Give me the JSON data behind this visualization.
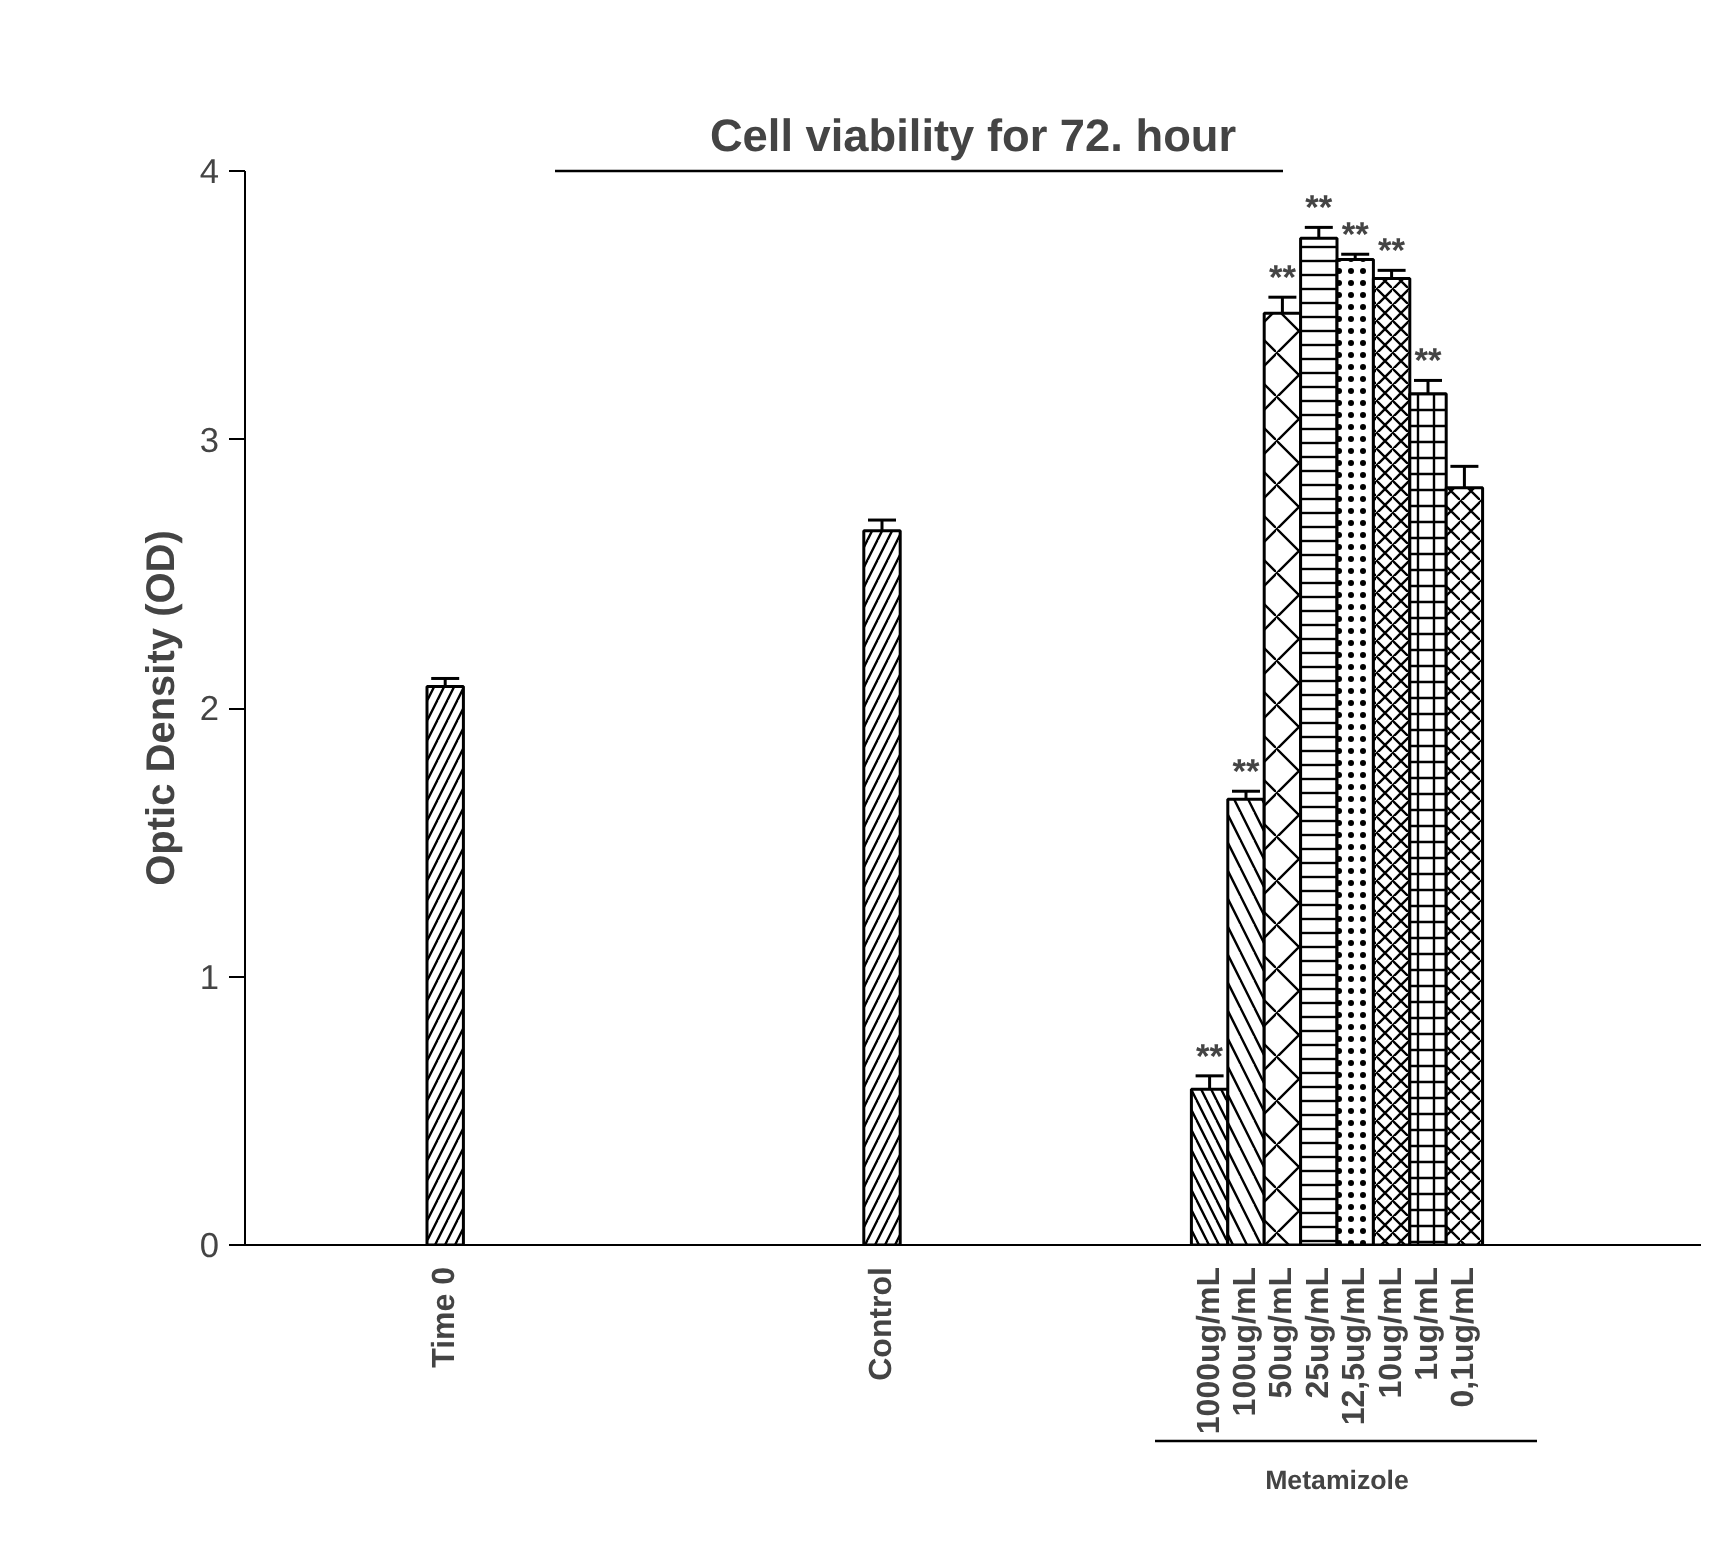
{
  "chart_data": {
    "type": "bar",
    "title": "Cell viability for 72. hour",
    "ylabel": "Optic Density (OD)",
    "categories": [
      null,
      null,
      null,
      null,
      null,
      "Time 0",
      null,
      null,
      null,
      null,
      null,
      null,
      null,
      null,
      null,
      null,
      null,
      "Control",
      null,
      null,
      null,
      null,
      null,
      null,
      null,
      null,
      "1000ug/mL",
      "100ug/mL",
      "50ug/mL",
      "25ug/mL",
      "12,5ug/mL",
      "10ug/mL",
      "1ug/mL",
      "0,1ug/mL",
      null,
      null,
      null,
      null,
      null,
      null
    ],
    "values": [
      null,
      null,
      null,
      null,
      null,
      2.08,
      null,
      null,
      null,
      null,
      null,
      null,
      null,
      null,
      null,
      null,
      null,
      2.66,
      null,
      null,
      null,
      null,
      null,
      null,
      null,
      null,
      0.58,
      1.66,
      3.47,
      3.75,
      3.67,
      3.6,
      3.17,
      2.82,
      null,
      null,
      null,
      null,
      null,
      null
    ],
    "errors": [
      null,
      null,
      null,
      null,
      null,
      0.03,
      null,
      null,
      null,
      null,
      null,
      null,
      null,
      null,
      null,
      null,
      null,
      0.04,
      null,
      null,
      null,
      null,
      null,
      null,
      null,
      null,
      0.05,
      0.03,
      0.06,
      0.04,
      0.02,
      0.03,
      0.05,
      0.08,
      null,
      null,
      null,
      null,
      null,
      null
    ],
    "color": "#ffffff",
    "ylim": [
      0,
      4
    ],
    "yticks": [
      0,
      1,
      2,
      3,
      4
    ],
    "grid": false,
    "annotations": [
      {
        "text": "**",
        "x": "1000ug/mL",
        "y": 0.63
      },
      {
        "text": "**",
        "x": "100ug/mL",
        "y": 1.69
      },
      {
        "text": "**",
        "x": "50ug/mL",
        "y": 3.53
      },
      {
        "text": "**",
        "x": "25ug/mL",
        "y": 3.79
      },
      {
        "text": "**",
        "x": "12,5ug/mL",
        "y": 3.69
      },
      {
        "text": "**",
        "x": "10ug/mL",
        "y": 3.63
      },
      {
        "text": "**",
        "x": "1ug/mL",
        "y": 3.22
      },
      "Metamizole"
    ]
  }
}
